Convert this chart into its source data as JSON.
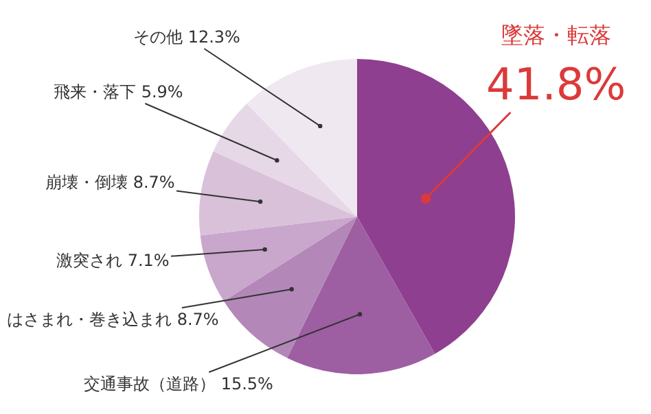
{
  "chart_data": {
    "type": "pie",
    "categories": [
      "墜落・転落",
      "交通事故（道路）",
      "はさまれ・巻き込まれ",
      "激突され",
      "崩壊・倒壊",
      "飛来・落下",
      "その他"
    ],
    "values": [
      41.8,
      15.5,
      8.7,
      7.1,
      8.7,
      5.9,
      12.3
    ],
    "colors": [
      "#8f3f8f",
      "#9e5ea2",
      "#b387b8",
      "#c9a6cb",
      "#d9c1da",
      "#e6d8e7",
      "#f0e8f1"
    ],
    "value_labels": [
      "41.8%",
      "15.5%",
      "8.7%",
      "7.1%",
      "8.7%",
      "5.9%",
      "12.3%"
    ],
    "legend": false
  }
}
